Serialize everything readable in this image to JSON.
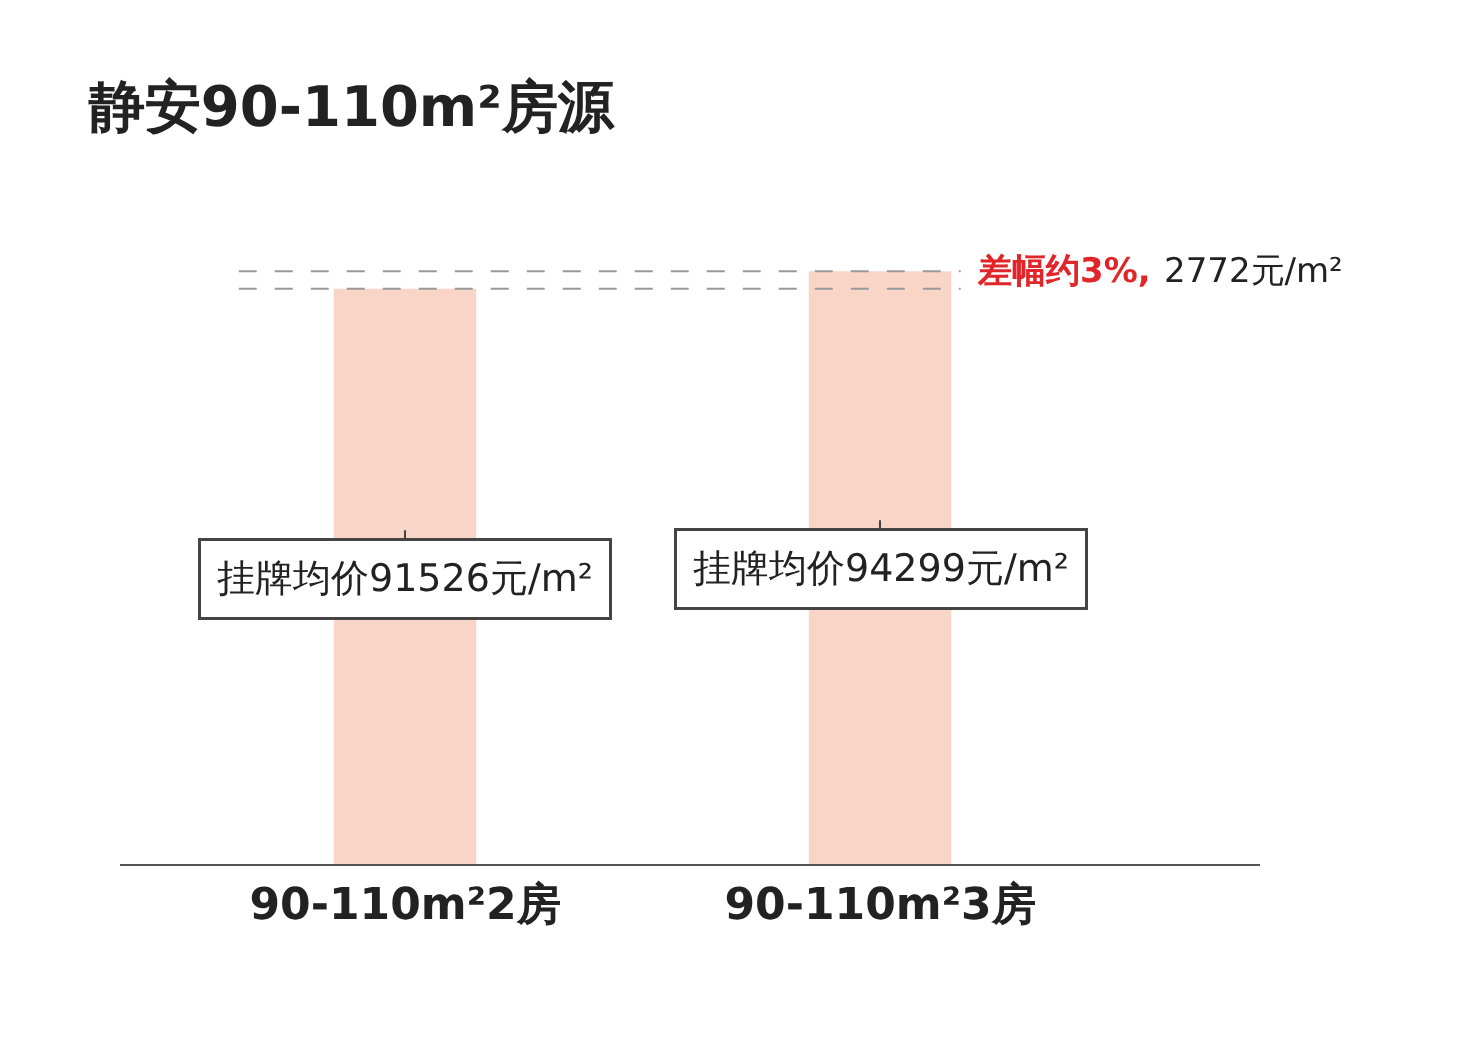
{
  "chart_data": {
    "type": "bar",
    "title": "静安90-110m²房源",
    "categories": [
      "90-110m²2房",
      "90-110m²3房"
    ],
    "values": [
      91526,
      94299
    ],
    "color": "#f9d5c8",
    "value_labels": [
      "挂牌均价91526元/m²",
      "挂牌均价94299元/m²"
    ],
    "ref_lines": [
      {
        "axis": "y",
        "value": 94299,
        "line_style": "dashed",
        "color": "#999999"
      },
      {
        "axis": "y",
        "value": 91526,
        "line_style": "dashed",
        "color": "#999999"
      }
    ],
    "annotations": [
      "差幅约3%,",
      "2772元/m²"
    ],
    "legend": false
  }
}
